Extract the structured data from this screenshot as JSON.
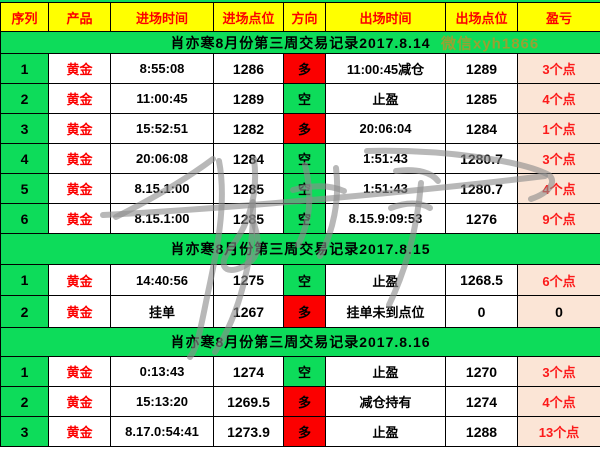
{
  "table": {
    "headers": [
      "序列",
      "产品",
      "进场时间",
      "进场点位",
      "方向",
      "出场时间",
      "出场点位",
      "盈亏"
    ],
    "sections": [
      {
        "title": "肖亦寒8月份第三周交易记录2017.8.14",
        "watermark": "微信xyh1866",
        "rows": [
          {
            "seq": "1",
            "product": "黄金",
            "entry_time": "8:55:08",
            "entry_point": "1286",
            "direction": "多",
            "direction_type": "long",
            "exit_time": "11:00:45减仓",
            "exit_point": "1289",
            "pnl": "3个点"
          },
          {
            "seq": "2",
            "product": "黄金",
            "entry_time": "11:00:45",
            "entry_point": "1289",
            "direction": "空",
            "direction_type": "short",
            "exit_time": "止盈",
            "exit_point": "1285",
            "pnl": "4个点"
          },
          {
            "seq": "3",
            "product": "黄金",
            "entry_time": "15:52:51",
            "entry_point": "1282",
            "direction": "多",
            "direction_type": "long",
            "exit_time": "20:06:04",
            "exit_point": "1284",
            "pnl": "1个点"
          },
          {
            "seq": "4",
            "product": "黄金",
            "entry_time": "20:06:08",
            "entry_point": "1284",
            "direction": "空",
            "direction_type": "short",
            "exit_time": "1:51:43",
            "exit_point": "1280.7",
            "pnl": "3个点"
          },
          {
            "seq": "5",
            "product": "黄金",
            "entry_time": "8.15.1:00",
            "entry_point": "1285",
            "direction": "空",
            "direction_type": "short",
            "exit_time": "1:51:43",
            "exit_point": "1280.7",
            "pnl": "4个点"
          },
          {
            "seq": "6",
            "product": "黄金",
            "entry_time": "8.15.1:00",
            "entry_point": "1285",
            "direction": "空",
            "direction_type": "short",
            "exit_time": "8.15.9:09:53",
            "exit_point": "1276",
            "pnl": "9个点"
          }
        ]
      },
      {
        "title": "肖亦寒8月份第三周交易记录2017.8.15",
        "rows": [
          {
            "seq": "1",
            "product": "黄金",
            "entry_time": "14:40:56",
            "entry_point": "1275",
            "direction": "空",
            "direction_type": "short",
            "exit_time": "止盈",
            "exit_point": "1268.5",
            "pnl": "6个点"
          },
          {
            "seq": "2",
            "product": "黄金",
            "entry_time": "挂单",
            "entry_point": "1267",
            "direction": "多",
            "direction_type": "long",
            "exit_time": "挂单未到点位",
            "exit_point": "0",
            "pnl": "0"
          }
        ]
      },
      {
        "title": "肖亦寒8月份第三周交易记录2017.8.16",
        "rows": [
          {
            "seq": "1",
            "product": "黄金",
            "entry_time": "0:13:43",
            "entry_point": "1274",
            "direction": "空",
            "direction_type": "short",
            "exit_time": "止盈",
            "exit_point": "1270",
            "pnl": "3个点"
          },
          {
            "seq": "2",
            "product": "黄金",
            "entry_time": "15:13:20",
            "entry_point": "1269.5",
            "direction": "多",
            "direction_type": "long",
            "exit_time": "减仓持有",
            "exit_point": "1274",
            "pnl": "4个点"
          },
          {
            "seq": "3",
            "product": "黄金",
            "entry_time": "8.17.0:54:41",
            "entry_point": "1273.9",
            "direction": "多",
            "direction_type": "long",
            "exit_time": "止盈",
            "exit_point": "1288",
            "pnl": "13个点"
          }
        ]
      }
    ]
  },
  "colors": {
    "header_bg": "#FFFF00",
    "header_text": "#FC0000",
    "banner_bg": "#0DDC5A",
    "long_bg": "#FB0000",
    "short_bg": "#0DDC5A",
    "pnl_bg": "#FBE5D6",
    "pnl_text": "#FC1A1A",
    "product_text": "#FC0000",
    "wechat_watermark_text": "#A89B2E",
    "signature_gray": "#8C8C8C"
  }
}
